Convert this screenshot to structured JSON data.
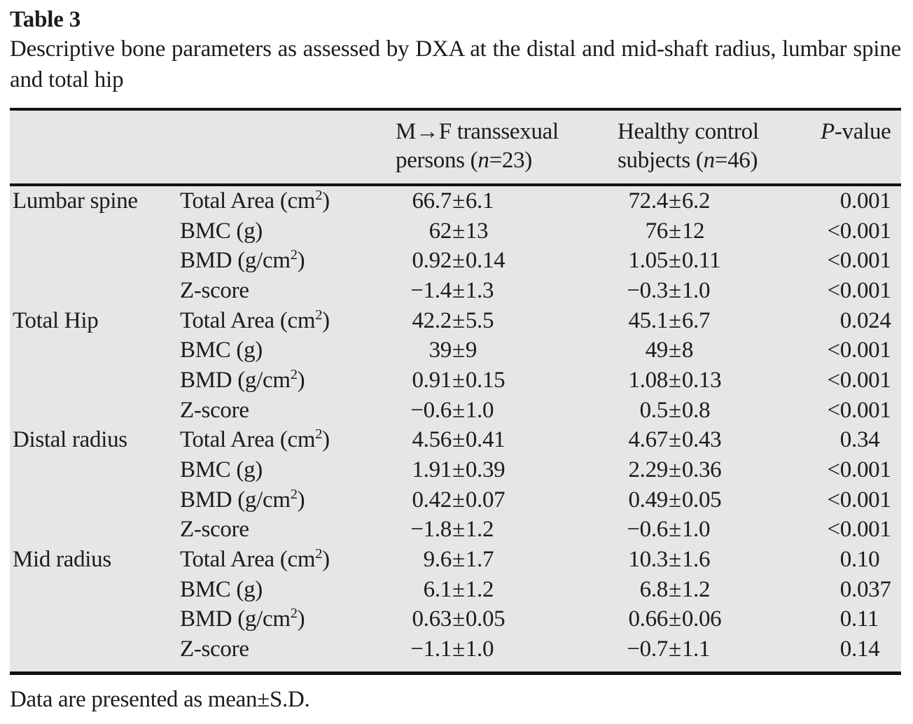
{
  "colors": {
    "table_background": "#e5e6e7",
    "rule": "#121212",
    "text": "#1c1c1c",
    "page_background": "#ffffff"
  },
  "table": {
    "label": "Table 3",
    "caption": "Descriptive bone parameters as assessed by DXA at the distal and mid-shaft radius, lumbar spine and total hip",
    "footnote": "Data are presented as mean±S.D.",
    "header": {
      "group1_line1": [
        {
          "t": "M→F transsexual"
        }
      ],
      "group1_line2": [
        {
          "t": "persons ("
        },
        {
          "t": "n",
          "i": true
        },
        {
          "t": "=23)"
        }
      ],
      "group2_line1": [
        {
          "t": "Healthy control"
        }
      ],
      "group2_line2": [
        {
          "t": "subjects ("
        },
        {
          "t": "n",
          "i": true
        },
        {
          "t": "=46)"
        }
      ],
      "pvalue": [
        {
          "t": "P",
          "i": true
        },
        {
          "t": "-value"
        }
      ]
    },
    "groups": [
      {
        "site": "Lumbar spine",
        "rows": [
          {
            "param": "Total Area (cm²)",
            "mf": "66.7±6.1",
            "hc": "72.4±6.2",
            "p": "0.001"
          },
          {
            "param": "BMC (g)",
            "mf": "62±13",
            "hc": "76±12",
            "p": "<0.001"
          },
          {
            "param": "BMD (g/cm²)",
            "mf": "0.92±0.14",
            "hc": "1.05±0.11",
            "p": "<0.001"
          },
          {
            "param": "Z-score",
            "mf": "−1.4±1.3",
            "hc": "−0.3±1.0",
            "p": "<0.001"
          }
        ]
      },
      {
        "site": "Total Hip",
        "rows": [
          {
            "param": "Total Area (cm²)",
            "mf": "42.2±5.5",
            "hc": "45.1±6.7",
            "p": "0.024"
          },
          {
            "param": "BMC (g)",
            "mf": "39±9",
            "hc": "49±8",
            "p": "<0.001"
          },
          {
            "param": "BMD (g/cm²)",
            "mf": "0.91±0.15",
            "hc": "1.08±0.13",
            "p": "<0.001"
          },
          {
            "param": "Z-score",
            "mf": "−0.6±1.0",
            "hc": "0.5±0.8",
            "p": "<0.001"
          }
        ]
      },
      {
        "site": "Distal radius",
        "rows": [
          {
            "param": "Total Area (cm²)",
            "mf": "4.56±0.41",
            "hc": "4.67±0.43",
            "p": "0.34"
          },
          {
            "param": "BMC (g)",
            "mf": "1.91±0.39",
            "hc": "2.29±0.36",
            "p": "<0.001"
          },
          {
            "param": "BMD (g/cm²)",
            "mf": "0.42±0.07",
            "hc": "0.49±0.05",
            "p": "<0.001"
          },
          {
            "param": "Z-score",
            "mf": "−1.8±1.2",
            "hc": "−0.6±1.0",
            "p": "<0.001"
          }
        ]
      },
      {
        "site": "Mid radius",
        "rows": [
          {
            "param": "Total Area (cm²)",
            "mf": "9.6±1.7",
            "hc": "10.3±1.6",
            "p": "0.10"
          },
          {
            "param": "BMC (g)",
            "mf": "6.1±1.2",
            "hc": "6.8±1.2",
            "p": "0.037"
          },
          {
            "param": "BMD (g/cm²)",
            "mf": "0.63±0.05",
            "hc": "0.66±0.06",
            "p": "0.11"
          },
          {
            "param": "Z-score",
            "mf": "−1.1±1.0",
            "hc": "−0.7±1.1",
            "p": "0.14"
          }
        ]
      }
    ]
  }
}
